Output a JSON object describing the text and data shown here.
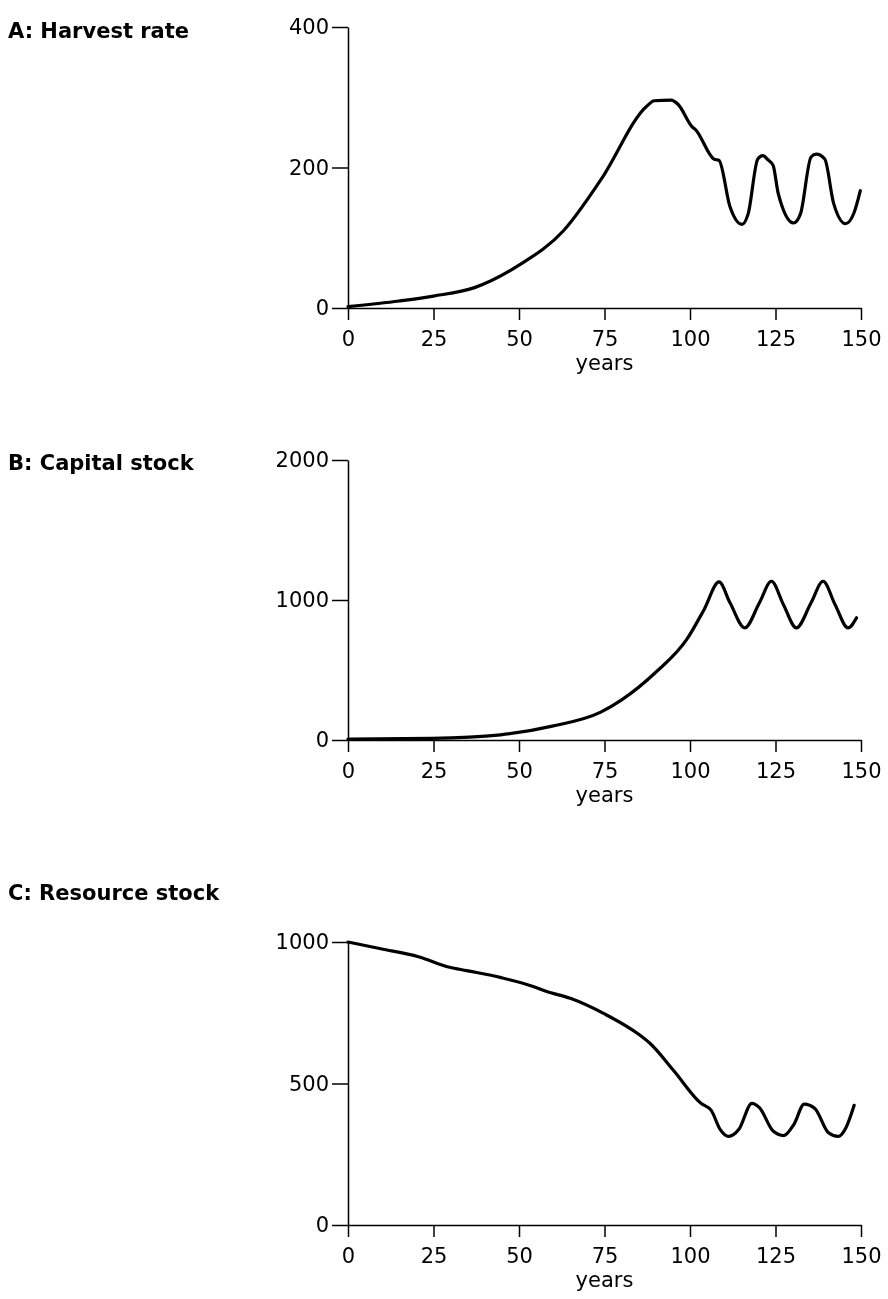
{
  "chart_data": [
    {
      "type": "line",
      "title": "A: Harvest rate",
      "xlabel": "years",
      "xlim": [
        0,
        150
      ],
      "xticks": [
        0,
        25,
        50,
        75,
        100,
        125,
        150
      ],
      "ylim": [
        0,
        400
      ],
      "yticks": [
        0,
        200,
        400
      ],
      "line_style": "solid",
      "series": [
        {
          "color": "#000000",
          "x": [
            0,
            15,
            25,
            37,
            50,
            63,
            74,
            87.5,
            89.5,
            94.5,
            96.5,
            100.6,
            101.6,
            107,
            108.5,
            111.7,
            115.2,
            117,
            119.8,
            121.3,
            122.8,
            124.3,
            125.8,
            130.3,
            132.3,
            135.4,
            136.9,
            139.4,
            142,
            145.5,
            148,
            149.8
          ],
          "values": [
            2,
            10,
            17,
            29,
            61,
            110,
            183,
            288,
            295,
            296,
            290,
            258,
            254,
            212,
            210,
            144,
            119,
            134,
            212,
            217,
            211,
            203,
            163,
            121,
            134,
            215,
            219,
            212,
            149,
            120,
            136,
            167
          ]
        }
      ]
    },
    {
      "type": "line",
      "title": "B: Capital stock",
      "xlabel": "years",
      "xlim": [
        0,
        150
      ],
      "xticks": [
        0,
        25,
        50,
        75,
        100,
        125,
        150
      ],
      "ylim": [
        0,
        2000
      ],
      "yticks": [
        0,
        1000,
        2000
      ],
      "line_style": "solid",
      "series": [
        {
          "color": "#000000",
          "x": [
            0,
            24.4,
            44.6,
            59.7,
            73.9,
            79.9,
            90,
            99.1,
            104.1,
            108.5,
            111.7,
            116,
            120.3,
            123.8,
            127.3,
            131.1,
            135.4,
            138.9,
            142.4,
            146.2,
            148.7
          ],
          "values": [
            7,
            12,
            37,
            99,
            199,
            285,
            484,
            720,
            931,
            1129,
            980,
            801,
            980,
            1134,
            968,
            801,
            980,
            1134,
            968,
            801,
            873
          ]
        }
      ]
    },
    {
      "type": "line",
      "title": "C: Resource stock",
      "xlabel": "years",
      "xlim": [
        0,
        150
      ],
      "xticks": [
        0,
        25,
        50,
        75,
        100,
        125,
        150
      ],
      "ylim": [
        0,
        1000
      ],
      "yticks": [
        0,
        500,
        1000
      ],
      "line_style": "solid",
      "series": [
        {
          "color": "#000000",
          "x": [
            0,
            9.6,
            20.6,
            29.7,
            34.7,
            44.8,
            53.9,
            57.9,
            65,
            75,
            85.1,
            88.2,
            95.2,
            103.2,
            106.2,
            108.8,
            111.3,
            114.3,
            118.1,
            120.3,
            124.3,
            127.4,
            130.4,
            133.4,
            136.5,
            140.5,
            143.3,
            145.6,
            148
          ],
          "values": [
            1000,
            976,
            948,
            911,
            899,
            874,
            844,
            826,
            801,
            746,
            673,
            643,
            546,
            430,
            405,
            338,
            313,
            338,
            430,
            415,
            332,
            316,
            356,
            427,
            412,
            326,
            313,
            344,
            423
          ]
        }
      ]
    }
  ]
}
